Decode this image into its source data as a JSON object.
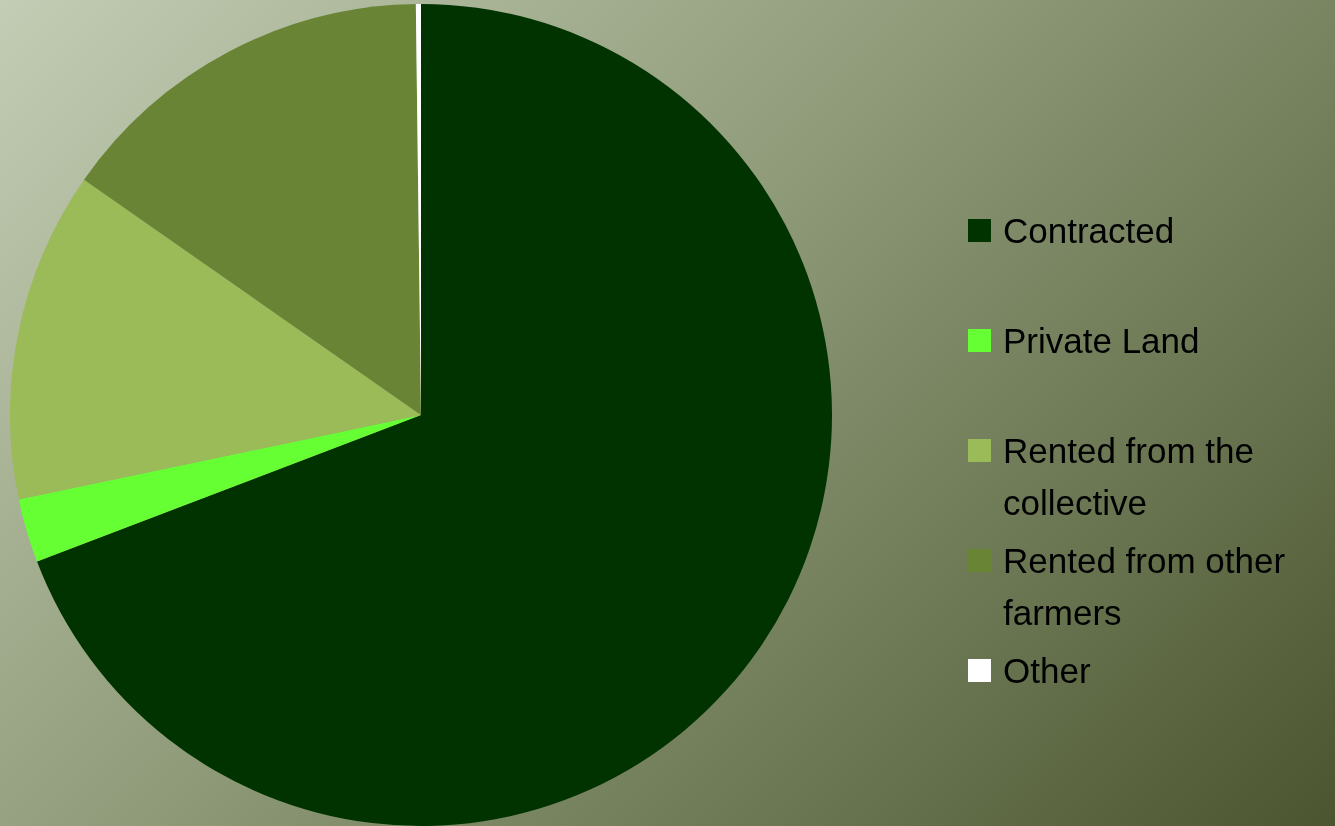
{
  "chart_data": {
    "type": "pie",
    "categories": [
      "Contracted",
      "Private Land",
      "Rented from the collective",
      "Rented from other farmers",
      "Other"
    ],
    "values": [
      69.2,
      2.5,
      13.0,
      15.1,
      0.2
    ],
    "colors": [
      "#003300",
      "#66ff33",
      "#9bbb59",
      "#698434",
      "#ffffff"
    ],
    "legend": "right"
  }
}
